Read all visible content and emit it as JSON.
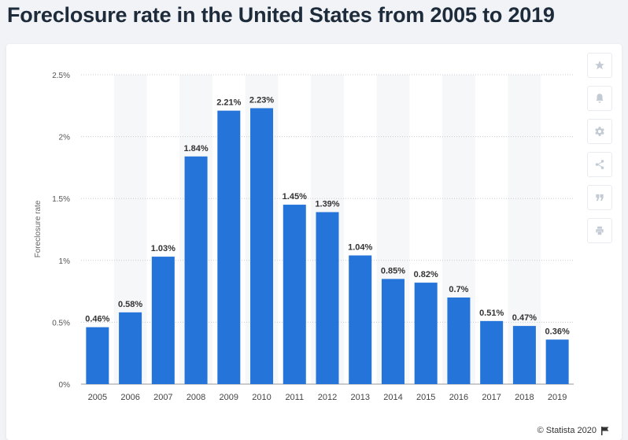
{
  "title": "Foreclosure rate in the United States from 2005 to 2019",
  "toolbar": {
    "icons": [
      "star-icon",
      "bell-icon",
      "gear-icon",
      "share-icon",
      "quote-icon",
      "print-icon"
    ]
  },
  "credit": "© Statista 2020",
  "colors": {
    "bar": "#2574d9",
    "grid": "#c9ced4",
    "band": "#f6f7f8"
  },
  "chart_data": {
    "type": "bar",
    "categories": [
      "2005",
      "2006",
      "2007",
      "2008",
      "2009",
      "2010",
      "2011",
      "2012",
      "2013",
      "2014",
      "2015",
      "2016",
      "2017",
      "2018",
      "2019"
    ],
    "values": [
      0.46,
      0.58,
      1.03,
      1.84,
      2.21,
      2.23,
      1.45,
      1.39,
      1.04,
      0.85,
      0.82,
      0.7,
      0.51,
      0.47,
      0.36
    ],
    "value_labels": [
      "0.46%",
      "0.58%",
      "1.03%",
      "1.84%",
      "2.21%",
      "2.23%",
      "1.45%",
      "1.39%",
      "1.04%",
      "0.85%",
      "0.82%",
      "0.7%",
      "0.51%",
      "0.47%",
      "0.36%"
    ],
    "yticks": [
      0,
      0.5,
      1,
      1.5,
      2,
      2.5
    ],
    "ytick_labels": [
      "0%",
      "0.5%",
      "1%",
      "1.5%",
      "2%",
      "2.5%"
    ],
    "ylabel": "Foreclosure rate",
    "xlabel": "",
    "ylim": [
      0,
      2.5
    ],
    "grid": true,
    "alternating_bands": true
  }
}
